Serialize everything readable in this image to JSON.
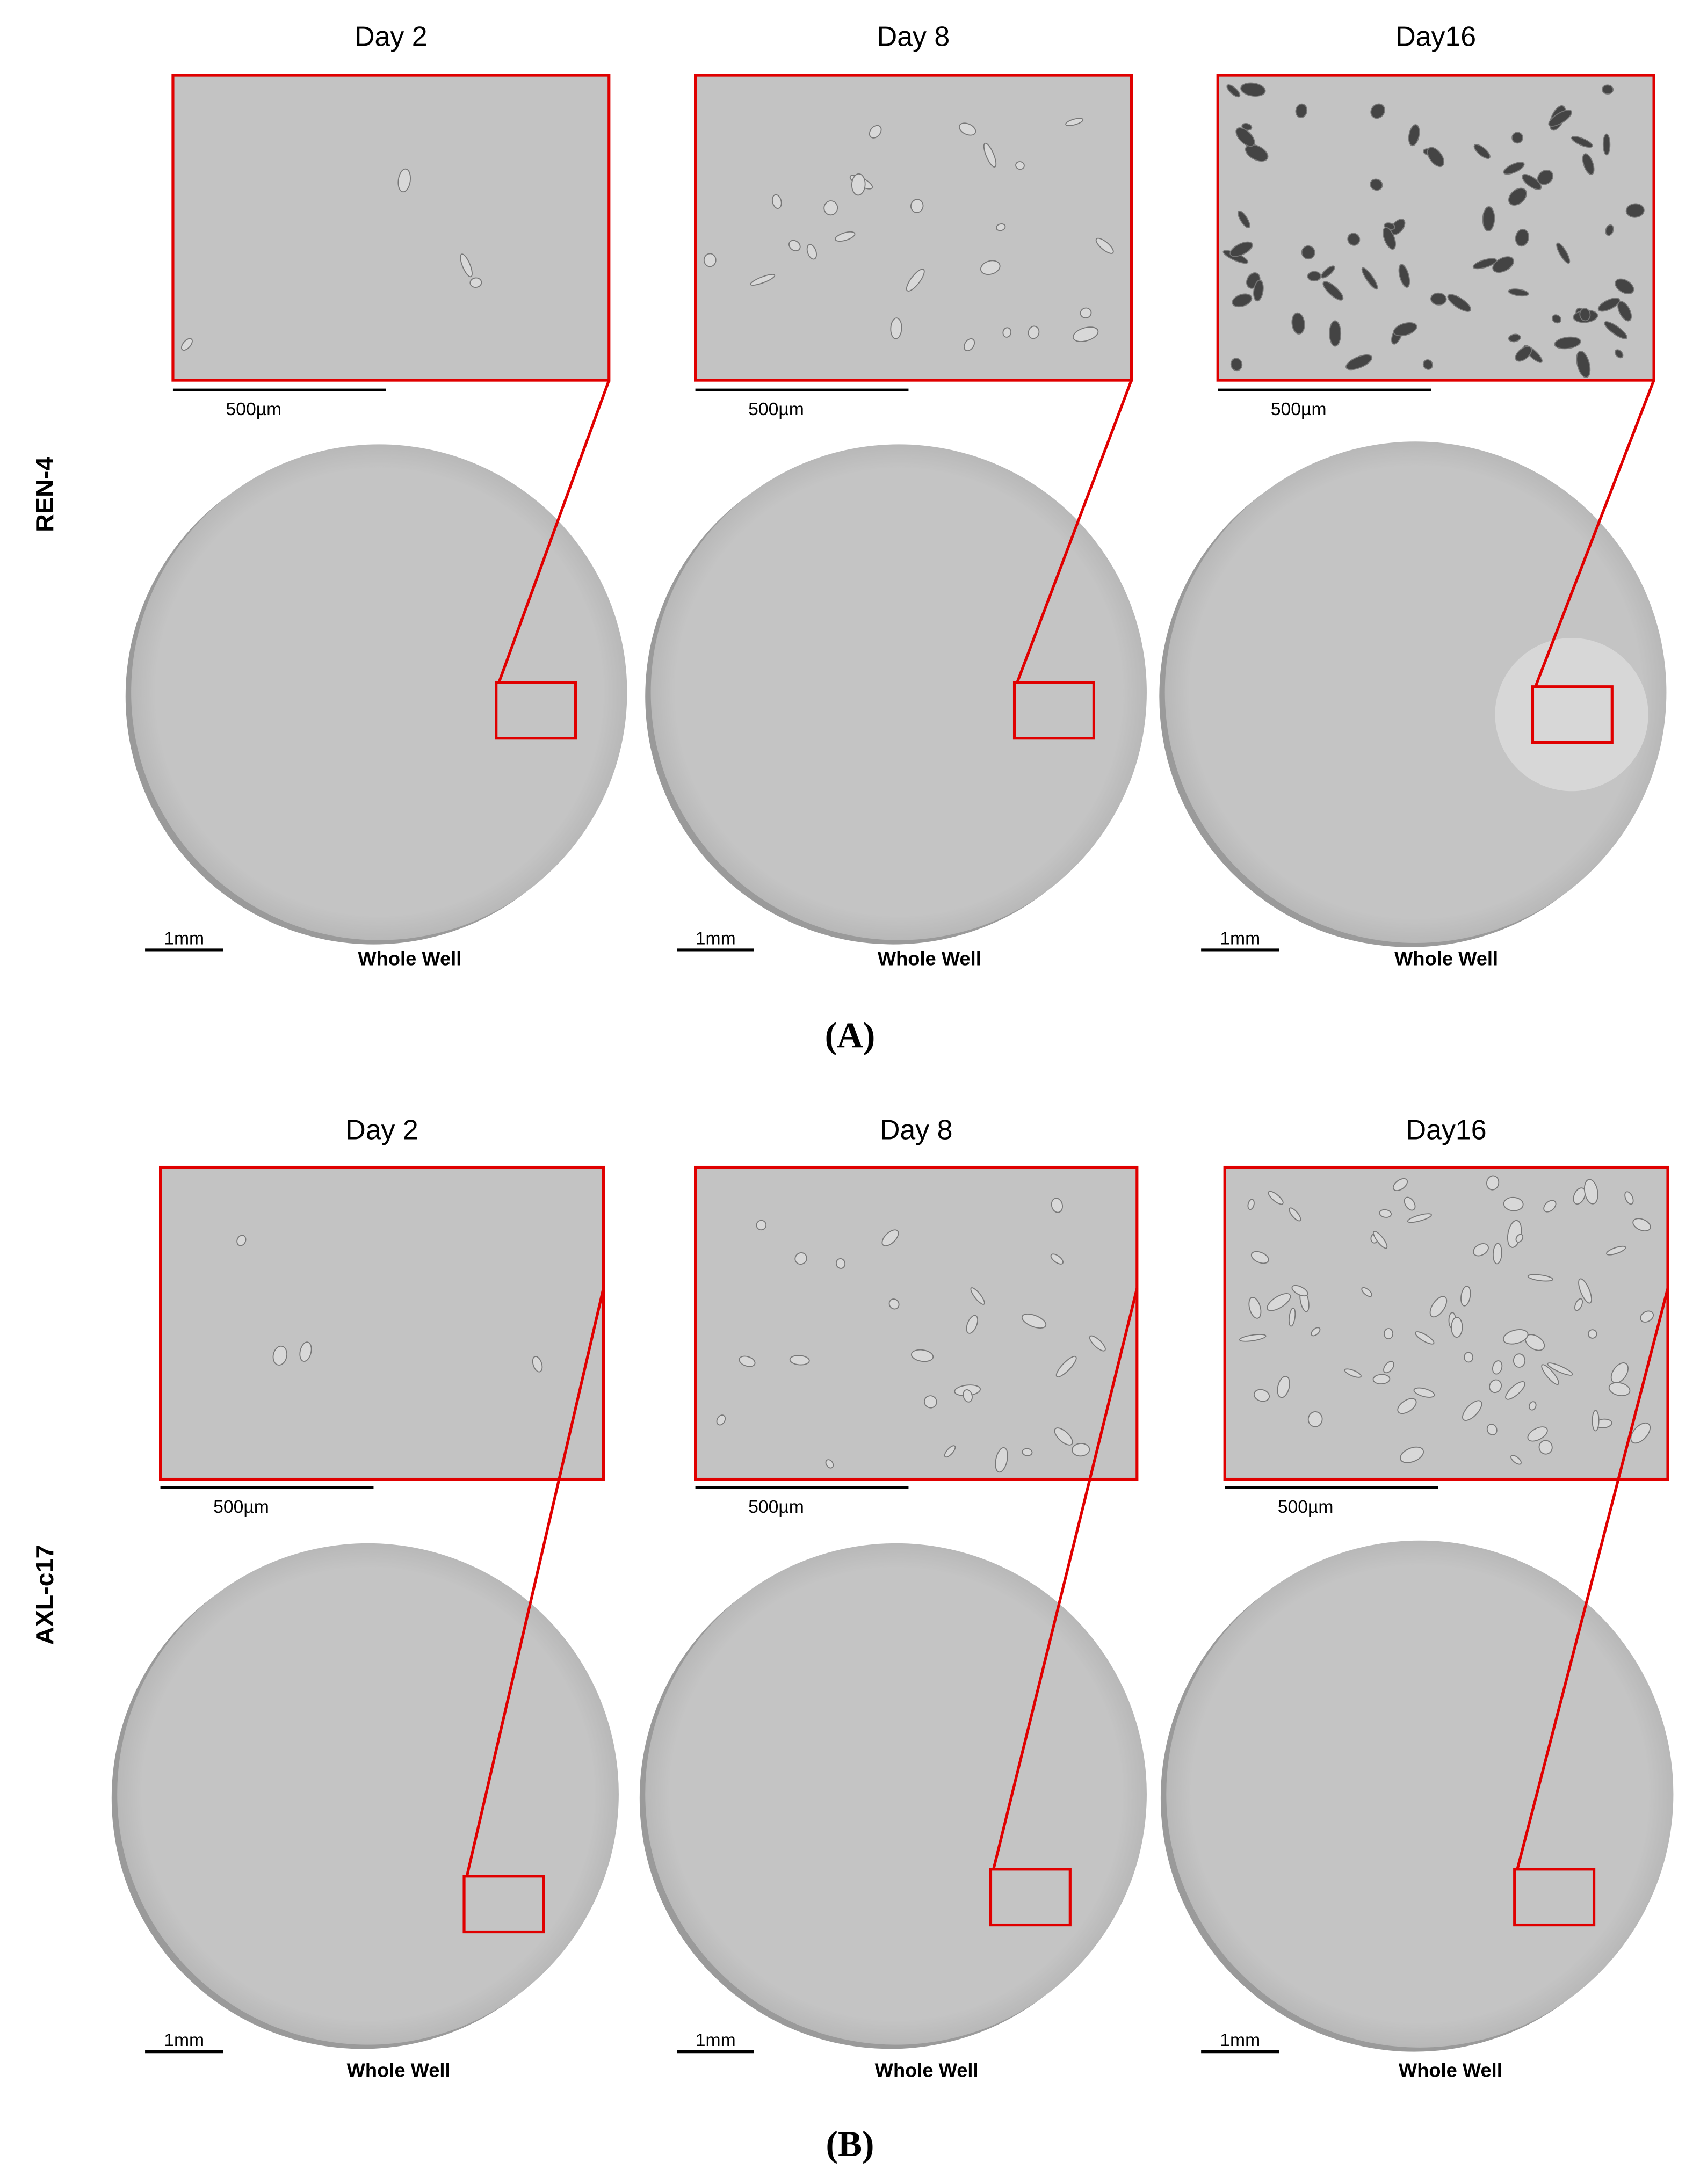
{
  "panels": [
    {
      "label": "(A)",
      "row_label": "REN-4",
      "columns": [
        {
          "day": "Day 2",
          "zoom_scale": "500µm",
          "well_scale": "1mm",
          "well_label": "Whole Well"
        },
        {
          "day": "Day 8",
          "zoom_scale": "500µm",
          "well_scale": "1mm",
          "well_label": "Whole Well"
        },
        {
          "day": "Day16",
          "zoom_scale": "500µm",
          "well_scale": "1mm",
          "well_label": "Whole Well"
        }
      ]
    },
    {
      "label": "(B)",
      "row_label": "AXL-c17",
      "columns": [
        {
          "day": "Day 2",
          "zoom_scale": "500µm",
          "well_scale": "1mm",
          "well_label": "Whole Well"
        },
        {
          "day": "Day 8",
          "zoom_scale": "500µm",
          "well_scale": "1mm",
          "well_label": "Whole Well"
        },
        {
          "day": "Day16",
          "zoom_scale": "500µm",
          "well_scale": "1mm",
          "well_label": "Whole Well"
        }
      ]
    }
  ]
}
